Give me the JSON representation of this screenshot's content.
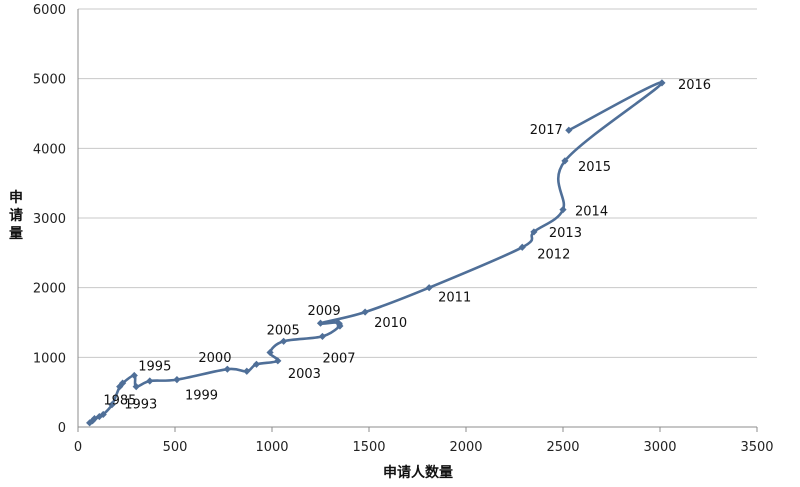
{
  "chart_data": {
    "type": "scatter",
    "xlabel": "申请人数量",
    "ylabel": "申请量",
    "xlim": [
      0,
      3500
    ],
    "ylim": [
      0,
      6000
    ],
    "x_ticks": [
      "0",
      "500",
      "1000",
      "1500",
      "2000",
      "2500",
      "3000",
      "3500"
    ],
    "y_ticks": [
      "0",
      "1000",
      "2000",
      "3000",
      "4000",
      "5000",
      "6000"
    ],
    "grid": "horizontal",
    "series_color": "#4f6f98",
    "points": [
      {
        "x": 60,
        "y": 60,
        "label": ""
      },
      {
        "x": 75,
        "y": 90,
        "label": ""
      },
      {
        "x": 85,
        "y": 120,
        "label": ""
      },
      {
        "x": 110,
        "y": 150,
        "label": "1985"
      },
      {
        "x": 130,
        "y": 180,
        "label": ""
      },
      {
        "x": 175,
        "y": 320,
        "label": ""
      },
      {
        "x": 215,
        "y": 580,
        "label": ""
      },
      {
        "x": 230,
        "y": 630,
        "label": ""
      },
      {
        "x": 290,
        "y": 740,
        "label": "1995"
      },
      {
        "x": 300,
        "y": 580,
        "label": "1993"
      },
      {
        "x": 370,
        "y": 660,
        "label": ""
      },
      {
        "x": 510,
        "y": 680,
        "label": "1999"
      },
      {
        "x": 770,
        "y": 830,
        "label": "2000"
      },
      {
        "x": 870,
        "y": 800,
        "label": ""
      },
      {
        "x": 920,
        "y": 900,
        "label": ""
      },
      {
        "x": 1030,
        "y": 950,
        "label": "2003"
      },
      {
        "x": 990,
        "y": 1070,
        "label": ""
      },
      {
        "x": 1060,
        "y": 1230,
        "label": "2005"
      },
      {
        "x": 1260,
        "y": 1300,
        "label": "2007"
      },
      {
        "x": 1350,
        "y": 1450,
        "label": ""
      },
      {
        "x": 1340,
        "y": 1500,
        "label": ""
      },
      {
        "x": 1250,
        "y": 1490,
        "label": "2009"
      },
      {
        "x": 1480,
        "y": 1650,
        "label": "2010"
      },
      {
        "x": 1810,
        "y": 2000,
        "label": "2011"
      },
      {
        "x": 2290,
        "y": 2580,
        "label": "2012"
      },
      {
        "x": 2350,
        "y": 2800,
        "label": "2013"
      },
      {
        "x": 2500,
        "y": 3120,
        "label": "2014"
      },
      {
        "x": 2510,
        "y": 3820,
        "label": "2015"
      },
      {
        "x": 3010,
        "y": 4940,
        "label": "2016"
      },
      {
        "x": 2530,
        "y": 4260,
        "label": "2017"
      }
    ]
  }
}
